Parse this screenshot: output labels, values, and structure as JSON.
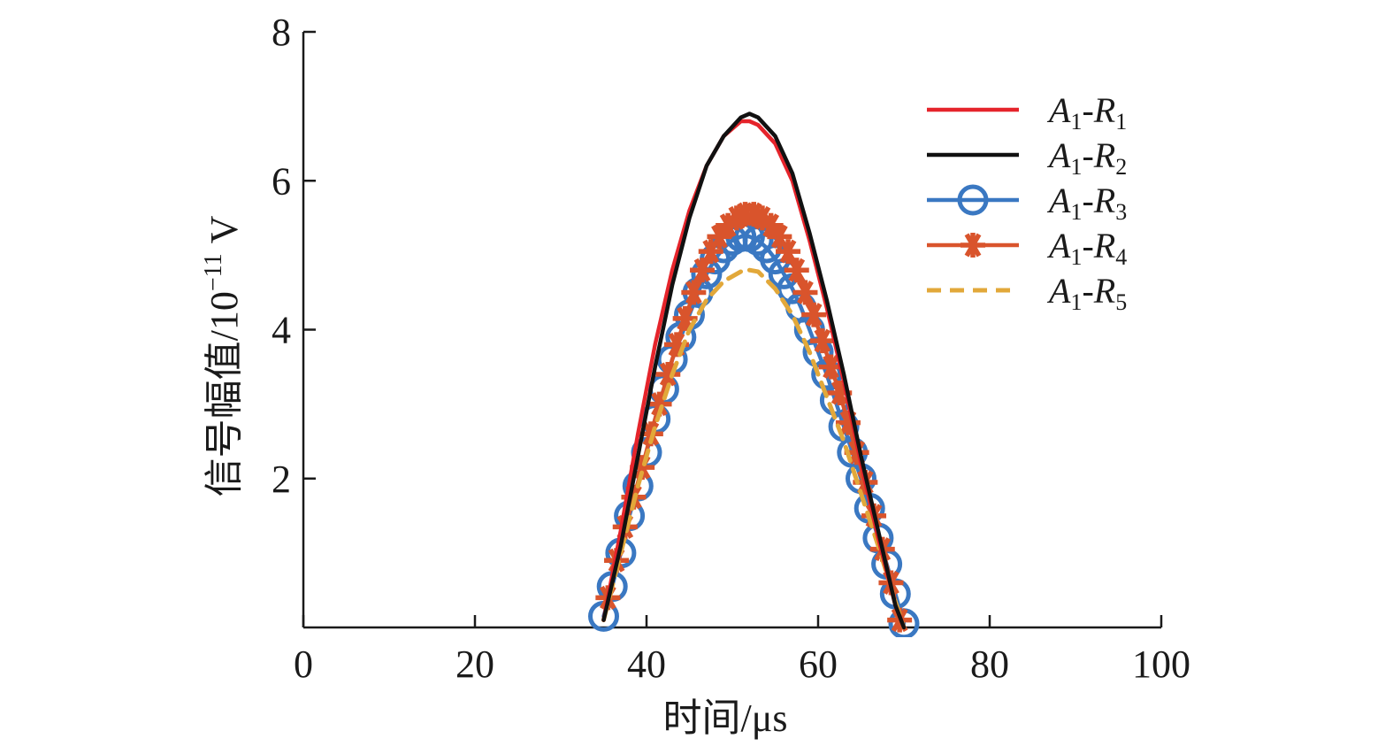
{
  "chart_data": {
    "type": "line",
    "title": "",
    "xlabel": "时间/μs",
    "ylabel_text": "信号幅值/10",
    "ylabel_exponent": "−11",
    "ylabel_unit": " V",
    "xlim": [
      0,
      100
    ],
    "ylim": [
      0,
      8
    ],
    "x_ticks": [
      0,
      20,
      40,
      60,
      80,
      100
    ],
    "y_ticks": [
      2,
      4,
      6,
      8
    ],
    "grid": false,
    "legend_position": "top-right",
    "series": [
      {
        "name": "A1-R1",
        "legend": {
          "a": "A",
          "a_sub": "1",
          "sep": "-",
          "r": "R",
          "r_sub": "1"
        },
        "color": "#e5242b",
        "style": "solid",
        "marker": "none",
        "x": [
          35,
          37,
          39,
          41,
          43,
          45,
          47,
          49,
          51,
          52,
          53,
          55,
          57,
          59,
          61,
          63,
          65,
          67,
          69,
          70
        ],
        "y": [
          0.1,
          1.3,
          2.6,
          3.8,
          4.8,
          5.6,
          6.2,
          6.6,
          6.8,
          6.8,
          6.75,
          6.5,
          6.0,
          5.2,
          4.3,
          3.3,
          2.2,
          1.2,
          0.3,
          0.0
        ]
      },
      {
        "name": "A1-R2",
        "legend": {
          "a": "A",
          "a_sub": "1",
          "sep": "-",
          "r": "R",
          "r_sub": "2"
        },
        "color": "#111111",
        "style": "solid",
        "marker": "none",
        "x": [
          35,
          37,
          39,
          41,
          43,
          45,
          47,
          49,
          51,
          52,
          53,
          55,
          57,
          59,
          61,
          63,
          65,
          67,
          69,
          70
        ],
        "y": [
          0.1,
          1.1,
          2.3,
          3.5,
          4.6,
          5.5,
          6.2,
          6.6,
          6.85,
          6.9,
          6.85,
          6.6,
          6.1,
          5.3,
          4.4,
          3.4,
          2.3,
          1.3,
          0.3,
          0.0
        ]
      },
      {
        "name": "A1-R3",
        "legend": {
          "a": "A",
          "a_sub": "1",
          "sep": "-",
          "r": "R",
          "r_sub": "3"
        },
        "color": "#3a78c2",
        "style": "solid",
        "marker": "circle",
        "x": [
          35,
          36,
          37,
          38,
          39,
          40,
          41,
          42,
          43,
          44,
          45,
          46,
          47,
          48,
          49,
          50,
          51,
          52,
          53,
          54,
          55,
          56,
          57,
          58,
          59,
          60,
          61,
          62,
          63,
          64,
          65,
          66,
          67,
          68,
          69,
          70
        ],
        "y": [
          0.15,
          0.55,
          1.0,
          1.5,
          1.9,
          2.35,
          2.8,
          3.2,
          3.6,
          3.9,
          4.2,
          4.5,
          4.75,
          4.95,
          5.1,
          5.2,
          5.25,
          5.25,
          5.2,
          5.1,
          4.95,
          4.75,
          4.55,
          4.3,
          4.0,
          3.7,
          3.4,
          3.05,
          2.7,
          2.35,
          2.0,
          1.6,
          1.2,
          0.85,
          0.45,
          0.05
        ]
      },
      {
        "name": "A1-R4",
        "legend": {
          "a": "A",
          "a_sub": "1",
          "sep": "-",
          "r": "R",
          "r_sub": "4"
        },
        "color": "#d9542c",
        "style": "solid",
        "marker": "star",
        "x": [
          35.5,
          36.5,
          37.5,
          38.5,
          39.5,
          40.5,
          41.5,
          42.5,
          43.5,
          44.5,
          45.5,
          46.5,
          47.5,
          48.5,
          49.5,
          50.5,
          51.5,
          52.5,
          53.5,
          54.5,
          55.5,
          56.5,
          57.5,
          58.5,
          59.5,
          60.5,
          61.5,
          62.5,
          63.5,
          64.5,
          65.5,
          66.5,
          67.5,
          68.5,
          69.5
        ],
        "y": [
          0.4,
          0.9,
          1.35,
          1.75,
          2.15,
          2.6,
          3.0,
          3.4,
          3.8,
          4.15,
          4.5,
          4.8,
          5.05,
          5.25,
          5.4,
          5.5,
          5.55,
          5.55,
          5.5,
          5.4,
          5.25,
          5.05,
          4.8,
          4.5,
          4.2,
          3.85,
          3.5,
          3.15,
          2.75,
          2.35,
          1.95,
          1.5,
          1.05,
          0.6,
          0.1
        ]
      },
      {
        "name": "A1-R5",
        "legend": {
          "a": "A",
          "a_sub": "1",
          "sep": "-",
          "r": "R",
          "r_sub": "5"
        },
        "color": "#e2a83a",
        "style": "dashed",
        "marker": "none",
        "x": [
          35,
          37,
          39,
          41,
          43,
          45,
          47,
          49,
          51,
          52,
          53,
          55,
          57,
          59,
          61,
          63,
          65,
          67,
          69,
          70
        ],
        "y": [
          0.1,
          1.0,
          1.9,
          2.7,
          3.4,
          4.0,
          4.4,
          4.65,
          4.78,
          4.8,
          4.78,
          4.55,
          4.2,
          3.7,
          3.1,
          2.5,
          1.8,
          1.1,
          0.35,
          0.0
        ]
      }
    ]
  }
}
